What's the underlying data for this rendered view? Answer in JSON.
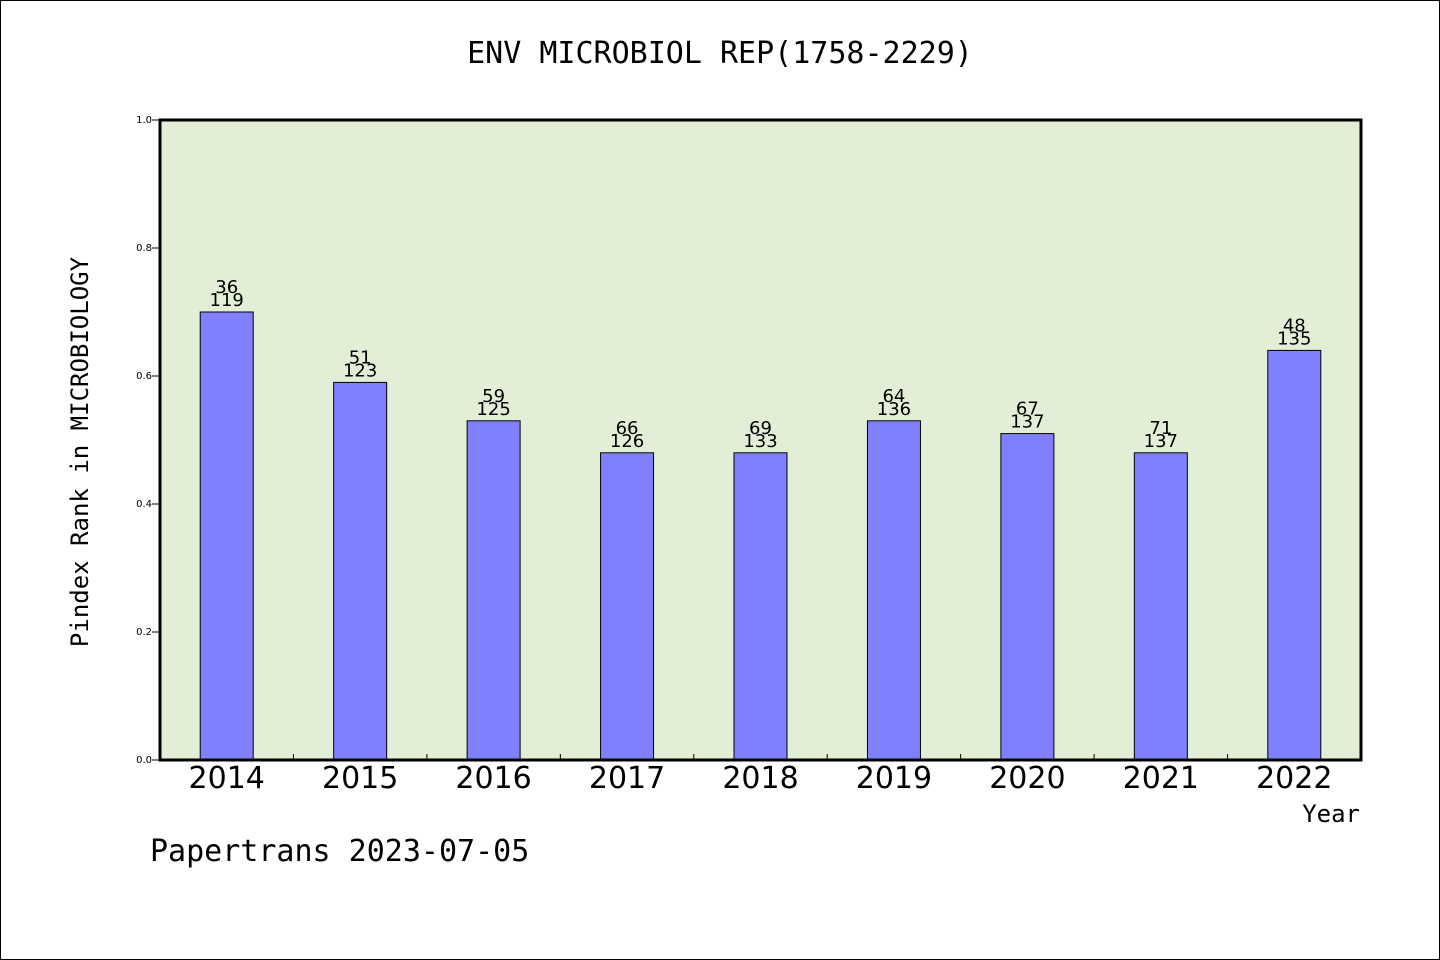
{
  "chart_data": {
    "type": "bar",
    "title": "ENV MICROBIOL REP(1758-2229)",
    "ylabel": "Pindex Rank in MICROBIOLOGY",
    "xlabel": "Year",
    "categories": [
      "2014",
      "2015",
      "2016",
      "2017",
      "2018",
      "2019",
      "2020",
      "2021",
      "2022"
    ],
    "values": [
      0.7,
      0.59,
      0.53,
      0.48,
      0.48,
      0.53,
      0.51,
      0.48,
      0.64
    ],
    "rank_labels": [
      "36",
      "51",
      "59",
      "66",
      "69",
      "64",
      "67",
      "71",
      "48"
    ],
    "total_labels": [
      "119",
      "123",
      "125",
      "126",
      "133",
      "136",
      "137",
      "137",
      "135"
    ],
    "ylim": [
      0,
      1.0
    ],
    "yticks": [
      "0.0",
      "0.2",
      "0.4",
      "0.6",
      "0.8",
      "1.0"
    ],
    "grid": false,
    "colors": {
      "plot_background": "#e2efd6",
      "bar_fill": "#8080ff",
      "bar_stroke": "#000000"
    }
  },
  "footer": "Papertrans 2023-07-05"
}
